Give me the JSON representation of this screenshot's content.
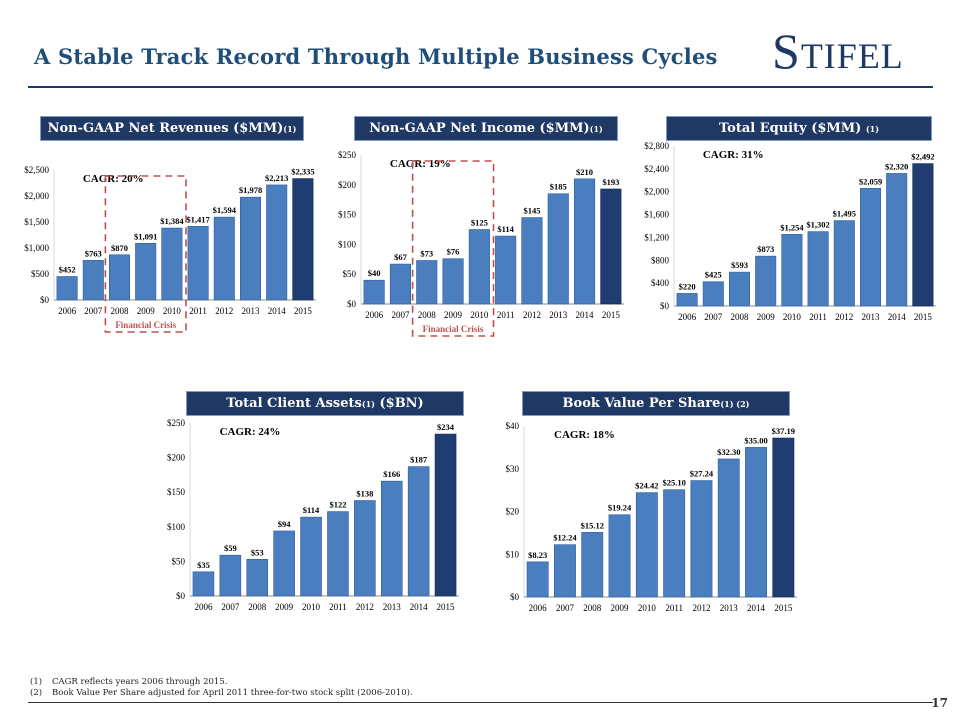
{
  "page": {
    "title": "A Stable Track Record Through Multiple Business Cycles",
    "logo": "Stifel",
    "page_number": "17"
  },
  "footnotes": [
    {
      "num": "(1)",
      "text": "CAGR reflects years 2006 through 2015."
    },
    {
      "num": "(2)",
      "text": "Book Value Per Share adjusted for April 2011 three-for-two stock split (2006-2010)."
    }
  ],
  "colors": {
    "navy": "#1f3864",
    "bar_blue": "#4a7ebf",
    "bar_dark": "#1f3d73",
    "crisis": "#c0504d"
  },
  "chart_data": [
    {
      "id": "revenues",
      "type": "bar",
      "title": "Non-GAAP Net Revenues ($MM)",
      "title_sup": "(1)",
      "cagr": "CAGR: 20%",
      "crisis_label": "Financial Crisis",
      "categories": [
        "2006",
        "2007",
        "2008",
        "2009",
        "2010",
        "2011",
        "2012",
        "2013",
        "2014",
        "2015"
      ],
      "values": [
        452,
        763,
        870,
        1091,
        1384,
        1417,
        1594,
        1978,
        2213,
        2335
      ],
      "labels": [
        "$452",
        "$763",
        "$870",
        "$1,091",
        "$1,384",
        "$1,417",
        "$1,594",
        "$1,978",
        "$2,213",
        "$2,335"
      ],
      "ylim": [
        0,
        2500
      ],
      "yticks": [
        0,
        500,
        1000,
        1500,
        2000,
        2500
      ],
      "ytick_labels": [
        "$0",
        "$500",
        "$1,000",
        "$1,500",
        "$2,000",
        "$2,500"
      ]
    },
    {
      "id": "net_income",
      "type": "bar",
      "title": "Non-GAAP Net Income ($MM)",
      "title_sup": "(1)",
      "cagr": "CAGR: 19%",
      "crisis_label": "Financial Crisis",
      "categories": [
        "2006",
        "2007",
        "2008",
        "2009",
        "2010",
        "2011",
        "2012",
        "2013",
        "2014",
        "2015"
      ],
      "values": [
        40,
        67,
        73,
        76,
        125,
        114,
        145,
        185,
        210,
        193
      ],
      "labels": [
        "$40",
        "$67",
        "$73",
        "$76",
        "$125",
        "$114",
        "$145",
        "$185",
        "$210",
        "$193"
      ],
      "ylim": [
        0,
        250
      ],
      "yticks": [
        0,
        50,
        100,
        150,
        200,
        250
      ],
      "ytick_labels": [
        "$0",
        "$50",
        "$100",
        "$150",
        "$200",
        "$250"
      ]
    },
    {
      "id": "equity",
      "type": "bar",
      "title": "Total Equity ($MM)",
      "title_sup": "(1)",
      "cagr": "CAGR: 31%",
      "crisis_label": "",
      "categories": [
        "2006",
        "2007",
        "2008",
        "2009",
        "2010",
        "2011",
        "2012",
        "2013",
        "2014",
        "2015"
      ],
      "values": [
        220,
        425,
        593,
        873,
        1254,
        1302,
        1495,
        2059,
        2320,
        2492
      ],
      "labels": [
        "$220",
        "$425",
        "$593",
        "$873",
        "$1,254",
        "$1,302",
        "$1,495",
        "$2,059",
        "$2,320",
        "$2,492"
      ],
      "ylim": [
        0,
        2800
      ],
      "yticks": [
        0,
        400,
        800,
        1200,
        1600,
        2000,
        2400,
        2800
      ],
      "ytick_labels": [
        "$0",
        "$400",
        "$800",
        "$1,200",
        "$1,600",
        "$2,000",
        "$2,400",
        "$2,800"
      ]
    },
    {
      "id": "client_assets",
      "type": "bar",
      "title": "Total Client Assets",
      "title_sup": "(1)",
      "title_suffix": " ($BN)",
      "cagr": "CAGR: 24%",
      "crisis_label": "",
      "categories": [
        "2006",
        "2007",
        "2008",
        "2009",
        "2010",
        "2011",
        "2012",
        "2013",
        "2014",
        "2015"
      ],
      "values": [
        35,
        59,
        53,
        94,
        114,
        122,
        138,
        166,
        187,
        234
      ],
      "labels": [
        "$35",
        "$59",
        "$53",
        "$94",
        "$114",
        "$122",
        "$138",
        "$166",
        "$187",
        "$234"
      ],
      "ylim": [
        0,
        250
      ],
      "yticks": [
        0,
        50,
        100,
        150,
        200,
        250
      ],
      "ytick_labels": [
        "$0",
        "$50",
        "$100",
        "$150",
        "$200",
        "$250"
      ]
    },
    {
      "id": "bvps",
      "type": "bar",
      "title": "Book Value Per Share",
      "title_sup": "(1) (2)",
      "cagr": "CAGR: 18%",
      "crisis_label": "",
      "categories": [
        "2006",
        "2007",
        "2008",
        "2009",
        "2010",
        "2011",
        "2012",
        "2013",
        "2014",
        "2015"
      ],
      "values": [
        8.23,
        12.24,
        15.12,
        19.24,
        24.42,
        25.1,
        27.24,
        32.3,
        35.0,
        37.19
      ],
      "labels": [
        "$8.23",
        "$12.24",
        "$15.12",
        "$19.24",
        "$24.42",
        "$25.10",
        "$27.24",
        "$32.30",
        "$35.00",
        "$37.19"
      ],
      "ylim": [
        0,
        40
      ],
      "yticks": [
        0,
        10,
        20,
        30,
        40
      ],
      "ytick_labels": [
        "$0",
        "$10",
        "$20",
        "$30",
        "$40"
      ]
    }
  ]
}
